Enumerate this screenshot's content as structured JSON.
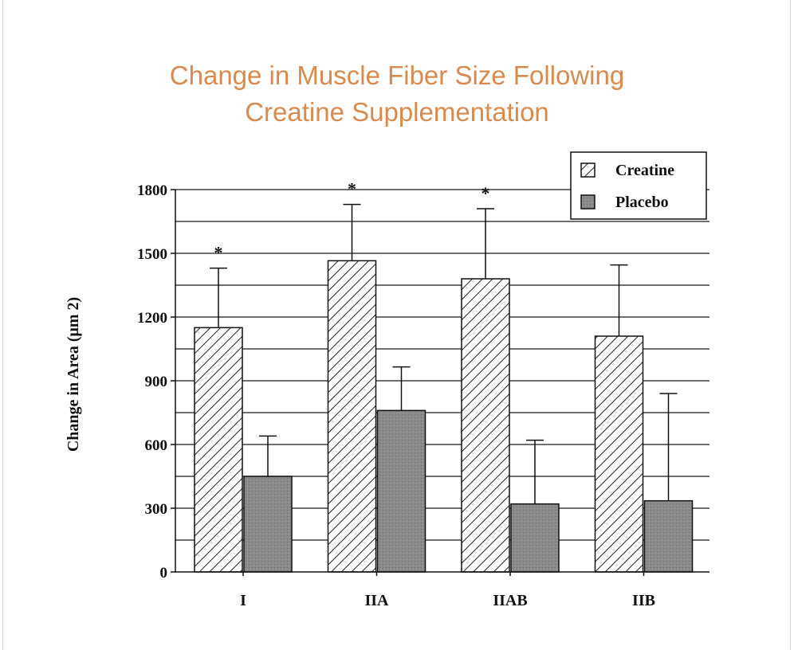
{
  "title_line1": "Change in Muscle Fiber Size Following",
  "title_line2": "Creatine Supplementation",
  "chart_data": {
    "type": "bar",
    "categories": [
      "I",
      "IIA",
      "IIAB",
      "IIB"
    ],
    "series": [
      {
        "name": "Creatine",
        "values": [
          1150,
          1465,
          1380,
          1110
        ],
        "errors": [
          280,
          265,
          330,
          335
        ],
        "pattern": "hatched"
      },
      {
        "name": "Placebo",
        "values": [
          450,
          760,
          320,
          335
        ],
        "errors": [
          190,
          205,
          300,
          505
        ],
        "pattern": "solid",
        "color": "#8a8a8a"
      }
    ],
    "significance": [
      {
        "category": "I",
        "label": "*"
      },
      {
        "category": "IIA",
        "label": "*"
      },
      {
        "category": "IIAB",
        "label": "*"
      }
    ],
    "title": "Change in Muscle Fiber Size Following Creatine Supplementation",
    "xlabel": "",
    "ylabel": "Change in Area (μm 2)",
    "ylim": [
      0,
      1800
    ],
    "yticks": [
      0,
      300,
      600,
      900,
      1200,
      1500,
      1800
    ],
    "grid": true,
    "legend_position": "top-right"
  },
  "colors": {
    "title": "#d98a4e",
    "placebo_fill": "#8a8a8a",
    "axis": "#111111"
  }
}
